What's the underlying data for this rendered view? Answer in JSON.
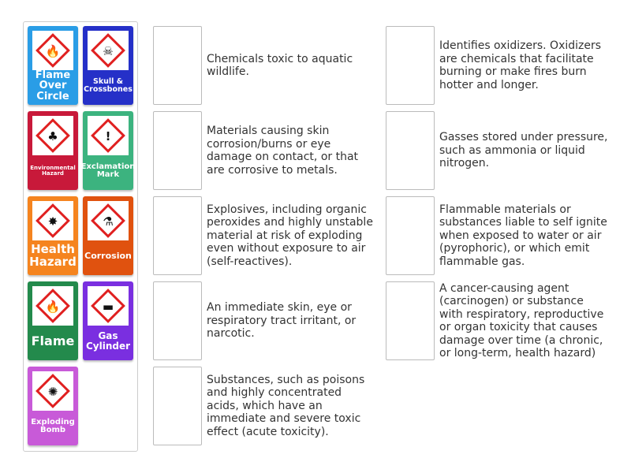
{
  "tiles": [
    {
      "label": "Flame Over Circle",
      "color": "#2a9de6",
      "icon": "flame-over-circle-icon",
      "size": "13px"
    },
    {
      "label": "Skull & Crossbones",
      "color": "#2530c8",
      "icon": "skull-crossbones-icon",
      "size": "9.5px"
    },
    {
      "label": "Environmental Hazard",
      "color": "#c8193a",
      "icon": "environment-icon",
      "size": "7px"
    },
    {
      "label": "Exclamation Mark",
      "color": "#3cb37f",
      "icon": "exclamation-icon",
      "size": "10px"
    },
    {
      "label": "Health Hazard",
      "color": "#f5841f",
      "icon": "health-hazard-icon",
      "size": "15px"
    },
    {
      "label": "Corrosion",
      "color": "#e0520f",
      "icon": "corrosion-icon",
      "size": "11px"
    },
    {
      "label": "Flame",
      "color": "#238a4c",
      "icon": "flame-icon",
      "size": "16px"
    },
    {
      "label": "Gas Cylinder",
      "color": "#7a2fe0",
      "icon": "gas-cylinder-icon",
      "size": "12px"
    },
    {
      "label": "Exploding Bomb",
      "color": "#c85ad8",
      "icon": "exploding-bomb-icon",
      "size": "10px"
    }
  ],
  "descriptions": [
    "Chemicals toxic to aquatic wildlife.",
    "Identifies oxidizers. Oxidizers are chemicals that facilitate burning or make fires burn hotter and longer.",
    "Materials causing skin corrosion/burns or eye damage on contact, or that are corrosive to metals.",
    "Gasses stored under pressure, such as ammonia or liquid nitrogen.",
    "Explosives, including organic peroxides and highly unstable material at risk of exploding even without exposure to air (self-reactives).",
    "Flammable materials or substances liable to self ignite when exposed to water or air (pyrophoric), or which emit flammable gas.",
    "An immediate skin, eye or respiratory tract irritant, or narcotic.",
    "A cancer-causing agent (carcinogen) or substance with respiratory, reproductive or organ toxicity that causes damage over time (a chronic, or long-term, health hazard)",
    "Substances, such as poisons and highly concentrated acids, which have an immediate and severe toxic effect (acute toxicity)."
  ]
}
